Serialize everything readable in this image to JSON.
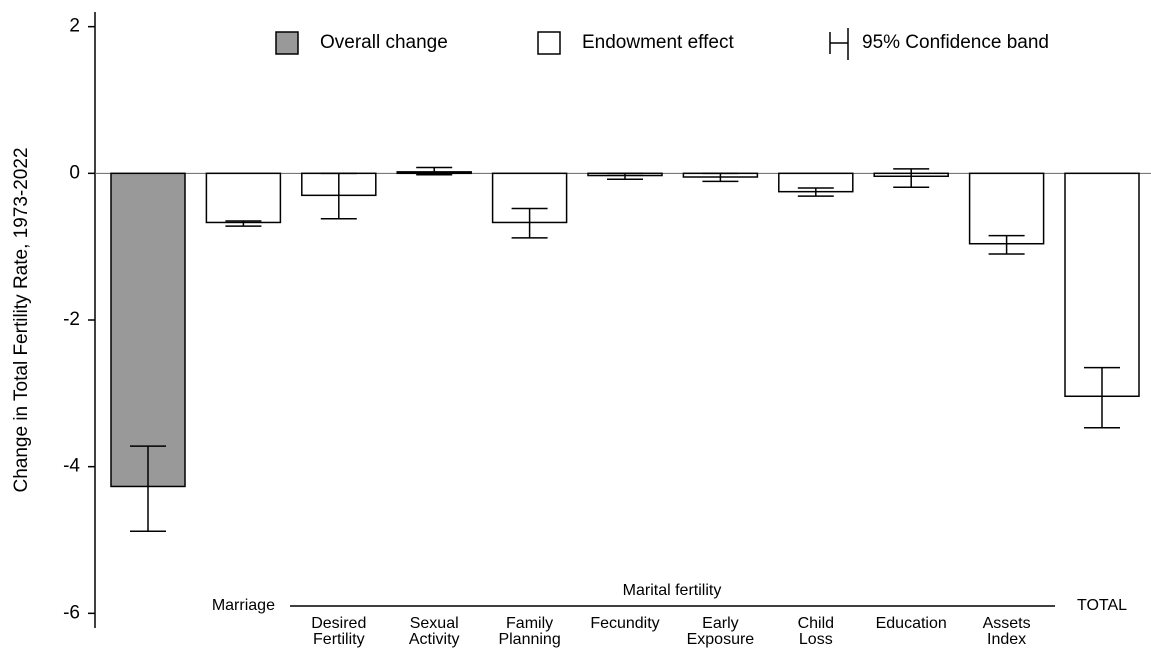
{
  "chart_data": {
    "type": "bar",
    "y_label": "Change in Total Fertility Rate, 1973-2022",
    "categories": [
      null,
      "Marriage",
      "Desired Fertility",
      "Sexual Activity",
      "Family Planning",
      "Fecundity",
      "Early Exposure",
      "Child Loss",
      "Education",
      "Assets Index",
      "TOTAL"
    ],
    "group_label": "Marital fertility",
    "ci_label": "95% Confidence band",
    "series": [
      {
        "name": "Overall change",
        "color": "#999999",
        "values": [
          -4.27,
          null,
          null,
          null,
          null,
          null,
          null,
          null,
          null,
          null,
          null
        ],
        "ci_low": [
          -4.88,
          null,
          null,
          null,
          null,
          null,
          null,
          null,
          null,
          null,
          null
        ],
        "ci_high": [
          -3.72,
          null,
          null,
          null,
          null,
          null,
          null,
          null,
          null,
          null,
          null
        ]
      },
      {
        "name": "Endowment effect",
        "color": "#ffffff",
        "values": [
          null,
          -0.67,
          -0.3,
          0.02,
          -0.67,
          -0.03,
          -0.05,
          -0.25,
          -0.04,
          -0.96,
          -3.04
        ],
        "ci_low": [
          null,
          -0.72,
          -0.62,
          -0.02,
          -0.88,
          -0.08,
          -0.11,
          -0.31,
          -0.19,
          -1.1,
          -3.47
        ],
        "ci_high": [
          null,
          -0.65,
          0.0,
          0.08,
          -0.48,
          0.0,
          0.0,
          -0.2,
          0.06,
          -0.85,
          -2.65
        ]
      }
    ],
    "ylim": [
      -6.2,
      2.2
    ],
    "yticks": [
      -6,
      -4,
      -2,
      0,
      2
    ],
    "grid": false
  }
}
